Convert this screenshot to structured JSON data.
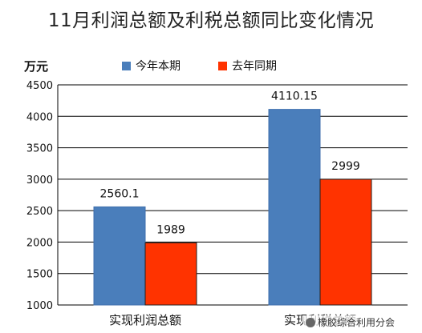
{
  "chart_data": {
    "type": "bar",
    "title": "11月利润总额及利税总额同比变化情况",
    "unit_label": "万元",
    "categories": [
      "实现利润总额",
      "实现利税总额"
    ],
    "series": [
      {
        "name": "今年本期",
        "color": "#4a7ebb",
        "values": [
          2560.1,
          4110.15
        ]
      },
      {
        "name": "去年同期",
        "color": "#ff3300",
        "values": [
          1989,
          2999
        ]
      }
    ],
    "ylim": [
      1000,
      4500
    ],
    "yticks": [
      1000,
      1500,
      2000,
      2500,
      3000,
      3500,
      4000,
      4500
    ],
    "grid": true,
    "legend_position": "top"
  },
  "watermark": {
    "text": "橡胶综合利用分会"
  }
}
